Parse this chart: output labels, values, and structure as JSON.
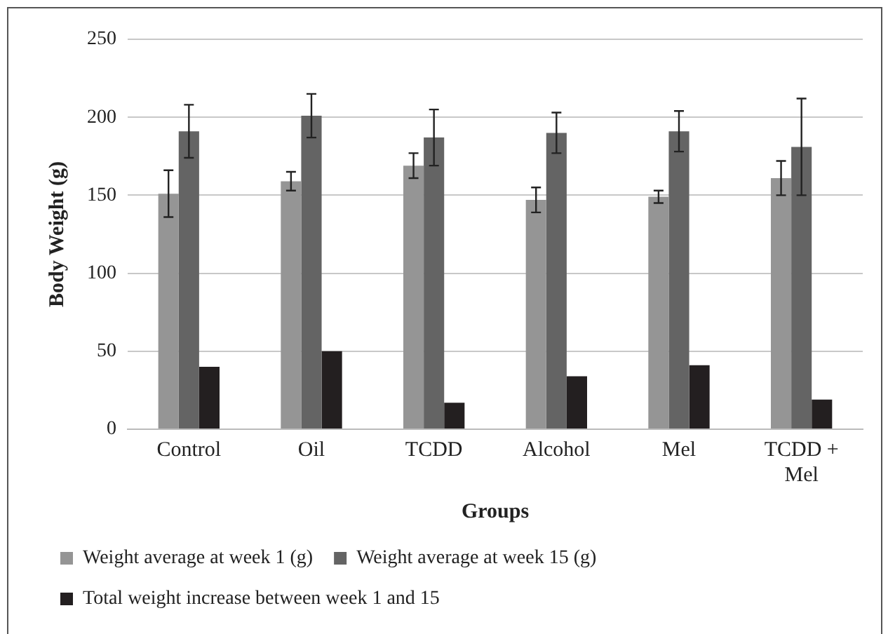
{
  "chart_data": {
    "type": "bar",
    "xlabel": "Groups",
    "ylabel": "Body Weight (g)",
    "categories": [
      "Control",
      "Oil",
      "TCDD",
      "Alcohol",
      "Mel",
      "TCDD + Mel"
    ],
    "series": [
      {
        "name": "Weight average at week 1 (g)",
        "color": "#959595",
        "values": [
          151,
          159,
          169,
          147,
          149,
          161
        ],
        "errors": [
          15,
          6,
          8,
          8,
          4,
          11
        ]
      },
      {
        "name": "Weight average at week 15 (g)",
        "color": "#646464",
        "values": [
          191,
          201,
          187,
          190,
          191,
          181
        ],
        "errors": [
          17,
          14,
          18,
          13,
          13,
          31
        ]
      },
      {
        "name": "Total weight increase between week 1 and 15",
        "color": "#231f20",
        "values": [
          40,
          50,
          17,
          34,
          41,
          19
        ]
      }
    ],
    "ylim": [
      0,
      250
    ],
    "yticks": [
      0,
      50,
      100,
      150,
      200,
      250
    ],
    "grid": "y",
    "legend": "bottom"
  }
}
